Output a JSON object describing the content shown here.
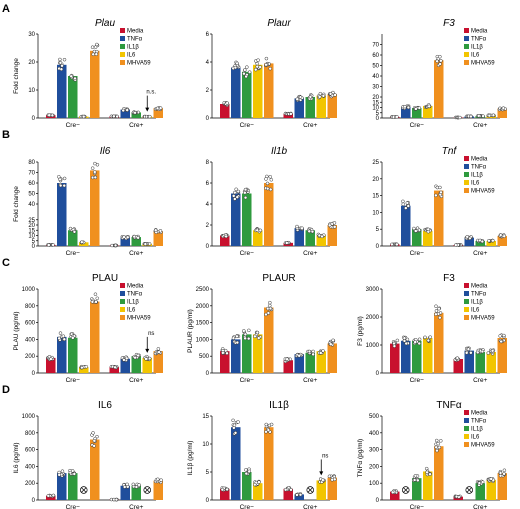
{
  "figure": {
    "colors": {
      "Media": "#c8102e",
      "TNFa": "#1f4e9c",
      "IL1b": "#2e9a3e",
      "IL6": "#f2c500",
      "MHVA59": "#f0901e"
    },
    "groups": [
      "Cre−",
      "Cre+"
    ],
    "treatments": [
      "Media",
      "TNFα",
      "IL1β",
      "IL6",
      "MHVA59"
    ],
    "treatment_keys": [
      "Media",
      "TNFa",
      "IL1b",
      "IL6",
      "MHVA59"
    ]
  },
  "chart_data": [
    {
      "type": "bar",
      "row": "A",
      "title": "Plau",
      "italic": true,
      "ylabel": "Fold change",
      "ylim": [
        0,
        30
      ],
      "ticks": [
        0,
        10,
        20,
        30
      ],
      "legend": true,
      "series": [
        {
          "group": "Cre−",
          "values": [
            1,
            19,
            15,
            0.5,
            24
          ]
        },
        {
          "group": "Cre+",
          "values": [
            0.6,
            3,
            2,
            0.5,
            3.5
          ]
        }
      ],
      "annotations": [
        {
          "text": "n.s.",
          "group": 1,
          "bar": 3,
          "arrow": true
        }
      ],
      "nd": []
    },
    {
      "type": "bar",
      "row": "A",
      "title": "Plaur",
      "italic": true,
      "ylabel": "",
      "ylim": [
        0,
        6
      ],
      "ticks": [
        0,
        2,
        4,
        6
      ],
      "legend": false,
      "series": [
        {
          "group": "Cre−",
          "values": [
            1,
            3.6,
            3.3,
            3.8,
            3.9
          ]
        },
        {
          "group": "Cre+",
          "values": [
            0.3,
            1.4,
            1.5,
            1.6,
            1.7
          ]
        }
      ],
      "annotations": [],
      "nd": []
    },
    {
      "type": "bar",
      "row": "A",
      "title": "F3",
      "italic": true,
      "ylabel": "",
      "ylim": [
        0,
        80
      ],
      "ticks": [
        0,
        5,
        10,
        15,
        20,
        30,
        40,
        50,
        60,
        70
      ],
      "legend": true,
      "series": [
        {
          "group": "Cre−",
          "values": [
            1,
            10.5,
            9.5,
            11.5,
            55
          ]
        },
        {
          "group": "Cre+",
          "values": [
            0.5,
            1.5,
            2,
            2.5,
            9
          ]
        }
      ],
      "annotations": [],
      "nd": []
    },
    {
      "type": "bar",
      "row": "B",
      "title": "Il6",
      "italic": true,
      "ylabel": "Fold change",
      "ylim": [
        0,
        80
      ],
      "ticks": [
        0,
        5,
        10,
        15,
        20,
        25,
        40,
        50,
        60,
        70,
        80
      ],
      "legend": false,
      "series": [
        {
          "group": "Cre−",
          "values": [
            1,
            60,
            15,
            3.5,
            72
          ]
        },
        {
          "group": "Cre+",
          "values": [
            0.5,
            8,
            8.5,
            2,
            14
          ]
        }
      ],
      "annotations": [],
      "nd": []
    },
    {
      "type": "bar",
      "row": "B",
      "title": "Il1b",
      "italic": true,
      "ylabel": "",
      "ylim": [
        0,
        8
      ],
      "ticks": [
        0,
        2,
        4,
        6,
        8
      ],
      "legend": false,
      "series": [
        {
          "group": "Cre−",
          "values": [
            1,
            5,
            5,
            1.5,
            6
          ]
        },
        {
          "group": "Cre+",
          "values": [
            0.3,
            1.7,
            1.5,
            1,
            2
          ]
        }
      ],
      "annotations": [],
      "nd": []
    },
    {
      "type": "bar",
      "row": "B",
      "title": "Tnf",
      "italic": true,
      "ylabel": "",
      "ylim": [
        0,
        25
      ],
      "ticks": [
        0,
        5,
        10,
        15,
        20,
        25
      ],
      "legend": true,
      "series": [
        {
          "group": "Cre−",
          "values": [
            0.5,
            12,
            5,
            4.5,
            16.5
          ]
        },
        {
          "group": "Cre+",
          "values": [
            0.3,
            2.5,
            1.5,
            1.5,
            3
          ]
        }
      ],
      "annotations": [],
      "nd": []
    },
    {
      "type": "bar",
      "row": "C",
      "title": "PLAU",
      "italic": false,
      "ylabel": "PLAU (pg/ml)",
      "ylim": [
        0,
        1000
      ],
      "ticks": [
        0,
        200,
        400,
        600,
        800,
        1000
      ],
      "legend": true,
      "series": [
        {
          "group": "Cre−",
          "values": [
            180,
            430,
            420,
            70,
            850
          ]
        },
        {
          "group": "Cre+",
          "values": [
            70,
            170,
            200,
            180,
            260
          ]
        }
      ],
      "annotations": [
        {
          "text": "ns",
          "group": 1,
          "bar": 3,
          "arrow": true
        }
      ],
      "nd": []
    },
    {
      "type": "bar",
      "row": "C",
      "title": "PLAUR",
      "italic": false,
      "ylabel": "PLAUR (pg/ml)",
      "ylim": [
        0,
        2500
      ],
      "ticks": [
        0,
        500,
        1000,
        1500,
        2000,
        2500
      ],
      "legend": false,
      "series": [
        {
          "group": "Cre−",
          "values": [
            650,
            1000,
            1150,
            1150,
            1950
          ]
        },
        {
          "group": "Cre+",
          "values": [
            380,
            560,
            600,
            650,
            880
          ]
        }
      ],
      "annotations": [],
      "nd": []
    },
    {
      "type": "bar",
      "row": "C",
      "title": "F3",
      "italic": false,
      "ylabel": "F3 (pg/ml)",
      "ylim": [
        0,
        3000
      ],
      "ticks": [
        0,
        1000,
        2000,
        3000
      ],
      "legend": true,
      "series": [
        {
          "group": "Cre−",
          "values": [
            1050,
            1150,
            1150,
            1250,
            2150
          ]
        },
        {
          "group": "Cre+",
          "values": [
            500,
            800,
            750,
            750,
            1250
          ]
        }
      ],
      "annotations": [],
      "nd": []
    },
    {
      "type": "bar",
      "row": "D",
      "title": "IL6",
      "italic": false,
      "ylabel": "IL6 (pg/ml)",
      "ylim": [
        0,
        1000
      ],
      "ticks": [
        0,
        200,
        400,
        600,
        800,
        1000
      ],
      "legend": false,
      "series": [
        {
          "group": "Cre−",
          "values": [
            50,
            320,
            320,
            0,
            720
          ]
        },
        {
          "group": "Cre+",
          "values": [
            5,
            170,
            170,
            0,
            230
          ]
        }
      ],
      "annotations": [],
      "nd": [
        {
          "group": 0,
          "bar": 3
        },
        {
          "group": 1,
          "bar": 3
        }
      ]
    },
    {
      "type": "bar",
      "row": "D",
      "title": "IL1β",
      "italic": false,
      "ylabel": "IL1β (pg/ml)",
      "ylim": [
        0,
        15
      ],
      "ticks": [
        0,
        5,
        10,
        15
      ],
      "legend": false,
      "series": [
        {
          "group": "Cre−",
          "values": [
            2,
            13,
            5,
            3,
            13
          ]
        },
        {
          "group": "Cre+",
          "values": [
            2,
            1,
            0,
            3.5,
            4
          ]
        }
      ],
      "annotations": [
        {
          "text": "ns",
          "group": 1,
          "bar": 3,
          "arrow": true
        }
      ],
      "nd": [
        {
          "group": 1,
          "bar": 2
        }
      ]
    },
    {
      "type": "bar",
      "row": "D",
      "title": "TNFα",
      "italic": false,
      "ylabel": "TNFα (pg/ml)",
      "ylim": [
        0,
        500
      ],
      "ticks": [
        0,
        100,
        200,
        300,
        400,
        500
      ],
      "legend": true,
      "series": [
        {
          "group": "Cre−",
          "values": [
            50,
            0,
            130,
            170,
            320
          ]
        },
        {
          "group": "Cre+",
          "values": [
            20,
            0,
            100,
            120,
            160
          ]
        }
      ],
      "annotations": [],
      "nd": [
        {
          "group": 0,
          "bar": 1
        },
        {
          "group": 1,
          "bar": 1
        }
      ]
    }
  ]
}
